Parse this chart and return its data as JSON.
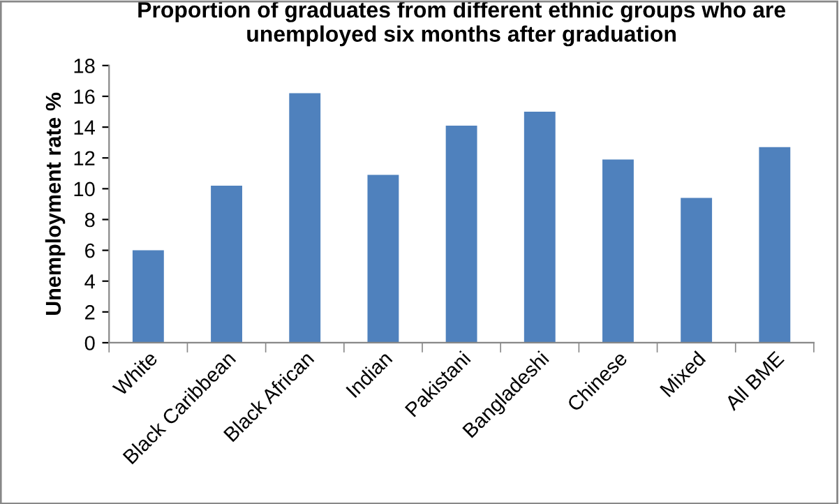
{
  "chart_data": {
    "type": "bar",
    "title": "Proportion of graduates from different ethnic groups who are unemployed six months after graduation",
    "ylabel": "Unemployment rate %",
    "categories": [
      "White",
      "Black Caribbean",
      "Black African",
      "Indian",
      "Pakistani",
      "Bangladeshi",
      "Chinese",
      "Mixed",
      "All BME"
    ],
    "values": [
      6.0,
      10.2,
      16.2,
      10.9,
      14.1,
      15.0,
      11.9,
      9.4,
      12.7
    ],
    "color": "#4f81bd",
    "ylim": [
      0,
      18
    ],
    "yticks": [
      0,
      2,
      4,
      6,
      8,
      10,
      12,
      14,
      16,
      18
    ],
    "grid": false,
    "legend": false
  }
}
